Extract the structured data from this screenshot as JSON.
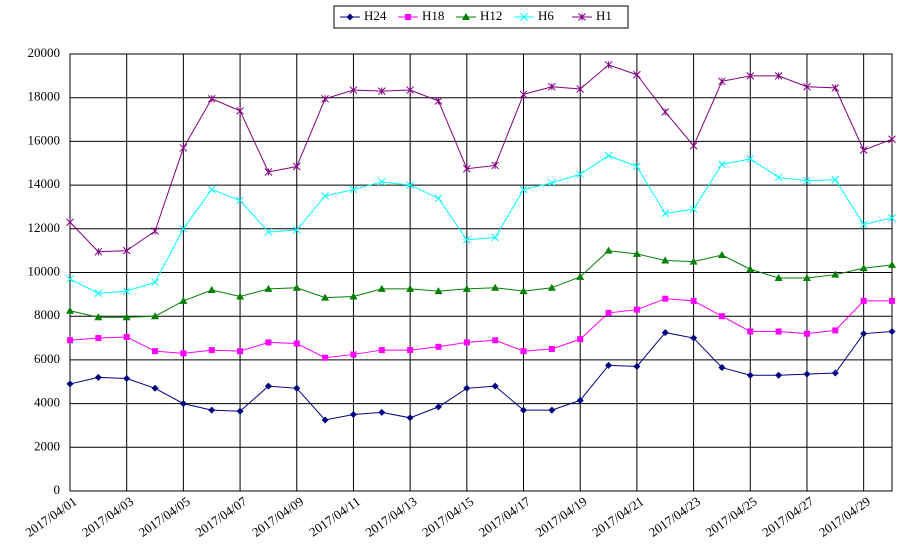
{
  "chart_data": {
    "type": "line",
    "categories": [
      "2017/04/01",
      null,
      "2017/04/03",
      null,
      "2017/04/05",
      null,
      "2017/04/07",
      null,
      "2017/04/09",
      null,
      "2017/04/11",
      null,
      "2017/04/13",
      null,
      "2017/04/15",
      null,
      "2017/04/17",
      null,
      "2017/04/19",
      null,
      "2017/04/21",
      null,
      "2017/04/23",
      null,
      "2017/04/25",
      null,
      "2017/04/27",
      null,
      "2017/04/29",
      null
    ],
    "series": [
      {
        "name": "H24",
        "color": "#000080",
        "marker": "diamond",
        "values": [
          4900,
          5200,
          5150,
          4700,
          4000,
          3700,
          3650,
          4800,
          4700,
          3250,
          3500,
          3600,
          3350,
          3850,
          4700,
          4800,
          3700,
          3700,
          4150,
          5750,
          5700,
          7250,
          7000,
          5650,
          5300,
          5300,
          5350,
          5400,
          7200,
          7300
        ]
      },
      {
        "name": "H18",
        "color": "#ff00ff",
        "marker": "square",
        "values": [
          6900,
          7000,
          7050,
          6400,
          6300,
          6450,
          6400,
          6800,
          6750,
          6100,
          6250,
          6450,
          6450,
          6600,
          6800,
          6900,
          6400,
          6500,
          6950,
          8150,
          8300,
          8800,
          8700,
          8000,
          7300,
          7300,
          7200,
          7350,
          8700,
          8700
        ]
      },
      {
        "name": "H12",
        "color": "#008000",
        "marker": "triangle",
        "values": [
          8250,
          7950,
          7950,
          8000,
          8700,
          9200,
          8900,
          9250,
          9300,
          8850,
          8900,
          9250,
          9250,
          9150,
          9250,
          9300,
          9150,
          9300,
          9800,
          11000,
          10850,
          10550,
          10500,
          10800,
          10150,
          9750,
          9750,
          9900,
          10200,
          10350
        ]
      },
      {
        "name": "H6",
        "color": "#00ffff",
        "marker": "x",
        "values": [
          9700,
          9050,
          9150,
          9550,
          12000,
          13800,
          13300,
          11850,
          11950,
          13500,
          13800,
          14150,
          14000,
          13400,
          11500,
          11600,
          13800,
          14100,
          14500,
          15350,
          14850,
          12700,
          12900,
          14950,
          15200,
          14350,
          14200,
          14250,
          12200,
          12500
        ]
      },
      {
        "name": "H1",
        "color": "#800080",
        "marker": "star",
        "values": [
          12300,
          10950,
          11000,
          11900,
          15700,
          17950,
          17400,
          14600,
          14850,
          17950,
          18350,
          18300,
          18350,
          17850,
          14750,
          14900,
          18150,
          18500,
          18400,
          19500,
          19050,
          17350,
          15800,
          18750,
          19000,
          19000,
          18500,
          18450,
          15600,
          16100
        ]
      }
    ],
    "ylim": [
      0,
      20000
    ],
    "yticks": [
      0,
      2000,
      4000,
      6000,
      8000,
      10000,
      12000,
      14000,
      16000,
      18000,
      20000
    ],
    "grid": true,
    "legend": "top"
  }
}
